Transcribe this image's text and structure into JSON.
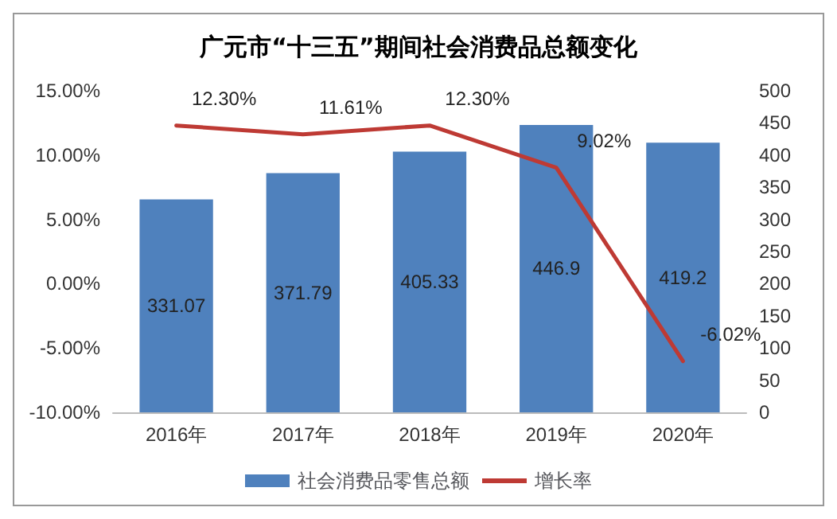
{
  "chart_data": {
    "type": "bar",
    "title": "广元市“十三五”期间社会消费品总额变化",
    "categories": [
      "2016年",
      "2017年",
      "2018年",
      "2019年",
      "2020年"
    ],
    "series": [
      {
        "name": "社会消费品零售总额",
        "type": "bar",
        "axis": "y2",
        "color": "#4f81bd",
        "values": [
          331.07,
          371.79,
          405.33,
          446.9,
          419.2
        ],
        "value_labels": [
          "331.07",
          "371.79",
          "405.33",
          "446.9",
          "419.2"
        ]
      },
      {
        "name": "增长率",
        "type": "line",
        "axis": "y",
        "color": "#be3a34",
        "values": [
          12.3,
          11.61,
          12.3,
          9.02,
          -6.02
        ],
        "value_labels": [
          "12.30%",
          "11.61%",
          "12.30%",
          "9.02%",
          "-6.02%"
        ]
      }
    ],
    "ylim": [
      -10,
      15
    ],
    "yticks": [
      {
        "value": -10,
        "label": "-10.00%"
      },
      {
        "value": -5,
        "label": "-5.00%"
      },
      {
        "value": 0,
        "label": "0.00%"
      },
      {
        "value": 5,
        "label": "5.00%"
      },
      {
        "value": 10,
        "label": "10.00%"
      },
      {
        "value": 15,
        "label": "15.00%"
      }
    ],
    "y2lim": [
      0,
      500
    ],
    "y2ticks": [
      0,
      50,
      100,
      150,
      200,
      250,
      300,
      350,
      400,
      450,
      500
    ],
    "legend": "bottom",
    "grid": false,
    "marker": "none"
  }
}
